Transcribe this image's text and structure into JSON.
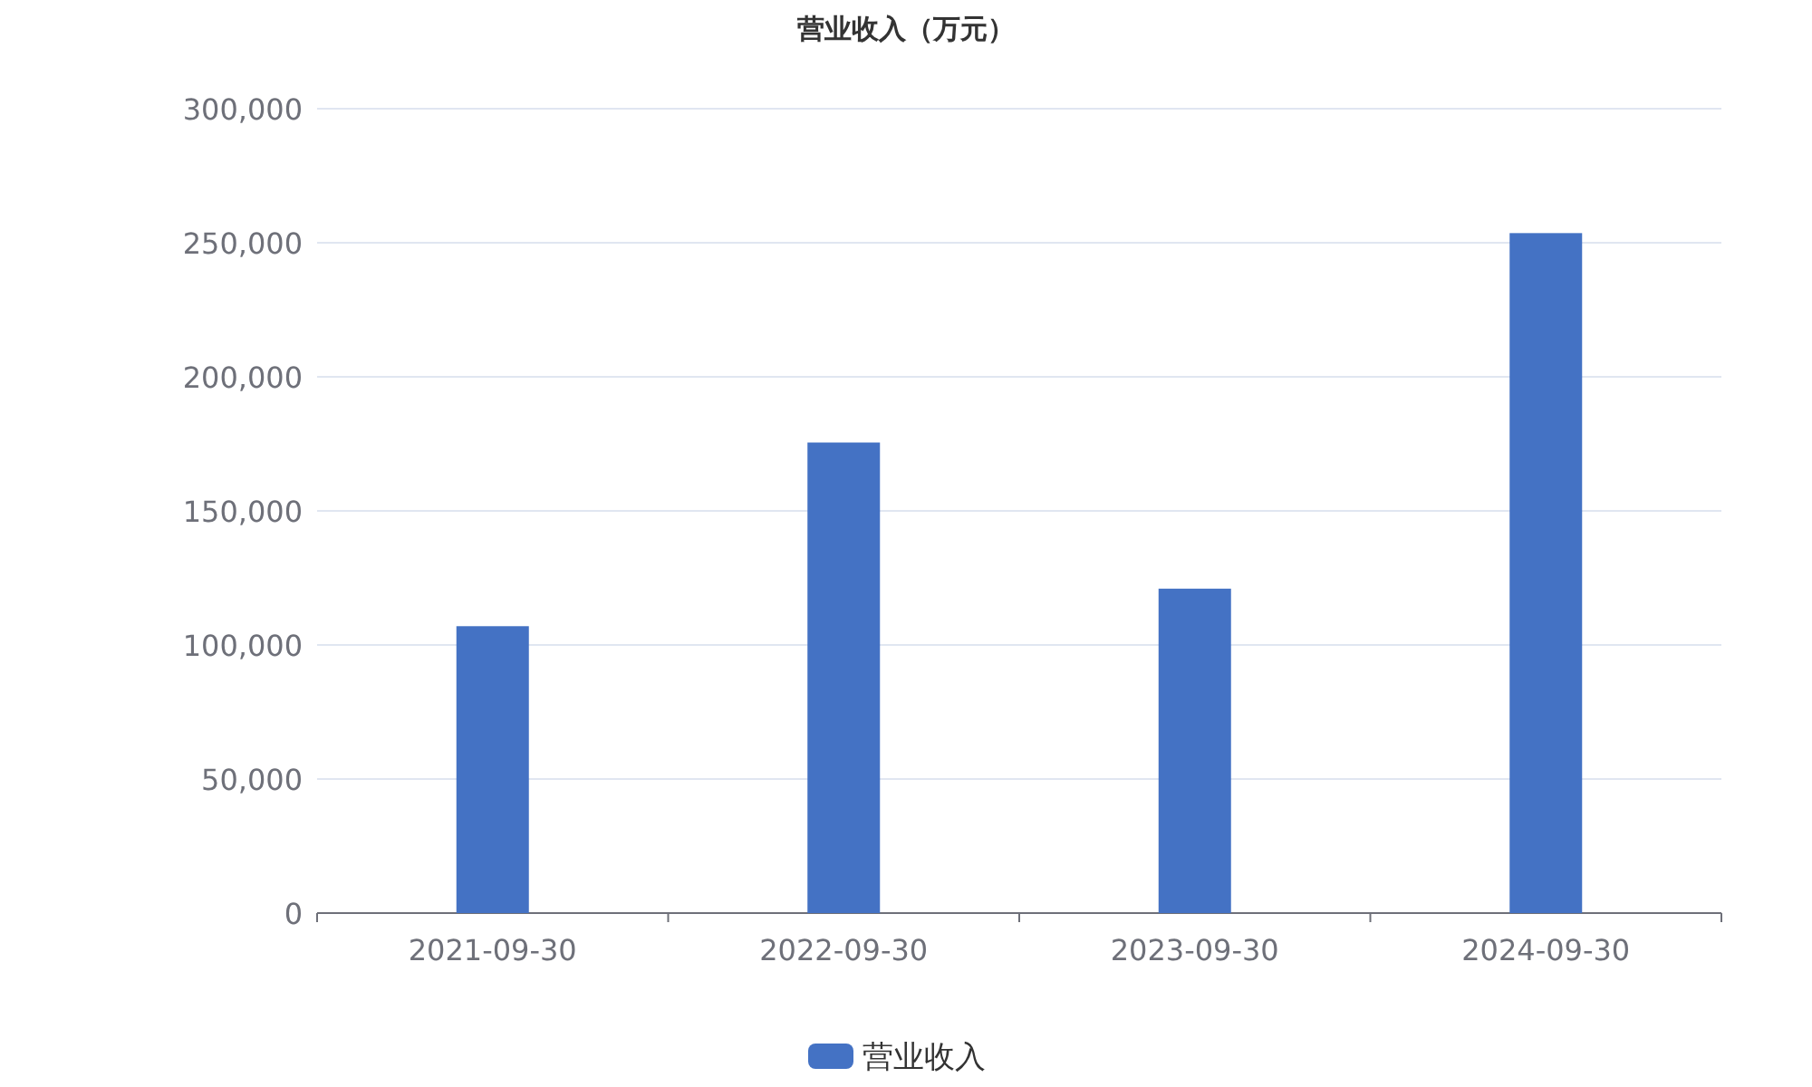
{
  "chart_data": {
    "type": "bar",
    "title": "营业收入（万元）",
    "categories": [
      "2021-09-30",
      "2022-09-30",
      "2023-09-30",
      "2024-09-30"
    ],
    "series": [
      {
        "name": "营业收入",
        "color": "#4472c4",
        "values": [
          107000,
          175500,
          121000,
          253600
        ]
      }
    ],
    "ylim": [
      0,
      300000
    ],
    "yticks": [
      {
        "value": 0,
        "label": "0"
      },
      {
        "value": 50000,
        "label": "50,000"
      },
      {
        "value": 100000,
        "label": "100,000"
      },
      {
        "value": 150000,
        "label": "150,000"
      },
      {
        "value": 200000,
        "label": "200,000"
      },
      {
        "value": 250000,
        "label": "250,000"
      },
      {
        "value": 300000,
        "label": "300,000"
      }
    ],
    "grid": "y",
    "legend": "bottom"
  }
}
